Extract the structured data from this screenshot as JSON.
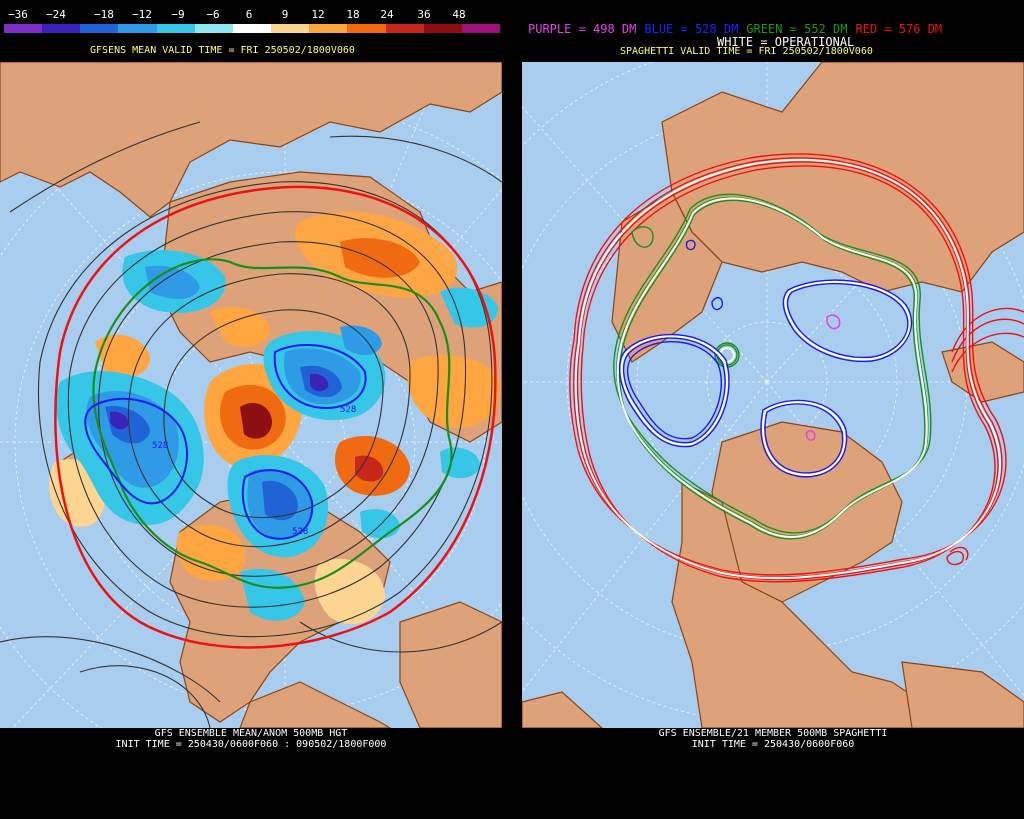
{
  "left": {
    "scale": {
      "labels": [
        "−36",
        "−24",
        "−18",
        "−12",
        "−9",
        "−6",
        "6",
        "9",
        "12",
        "18",
        "24",
        "36",
        "48"
      ],
      "colors": [
        "#7e2fc9",
        "#3b22b8",
        "#1f63d6",
        "#2f9ae5",
        "#35c6e8",
        "#8fe8f2",
        "#ffffff",
        "#ffd592",
        "#ffa640",
        "#ef6a10",
        "#c7261b",
        "#8c0f12",
        "#a0107a"
      ]
    },
    "valid_time": "GFSENS MEAN VALID TIME = FRI 250502/1800V060",
    "contour_label_1": "528",
    "contour_label_2": "528",
    "contour_label_3": "528",
    "footer_line1": "GFS ENSEMBLE MEAN/ANOM 500MB HGT",
    "footer_line2": "INIT TIME = 250430/0600F060 : 090502/1800F000"
  },
  "right": {
    "legend": {
      "purple": "PURPLE = 498 DM",
      "blue": "BLUE = 528 DM",
      "green": "GREEN = 552 DM",
      "red": "RED = 576 DM"
    },
    "operational": "WHITE = OPERATIONAL",
    "valid_time": "SPAGHETTI VALID TIME = FRI 250502/1800V060",
    "footer_line1": "GFS ENSEMBLE/21 MEMBER 500MB SPAGHETTI",
    "footer_line2": "INIT TIME = 250430/0600F060"
  },
  "colors": {
    "ocean": "#a9cdee",
    "land": "#dea27b",
    "border": "#8b4513",
    "purple": "#e83fe8",
    "blue": "#1a1af0",
    "green": "#1a8f1a",
    "red": "#ee1111",
    "valid_text": "#ffff66"
  }
}
